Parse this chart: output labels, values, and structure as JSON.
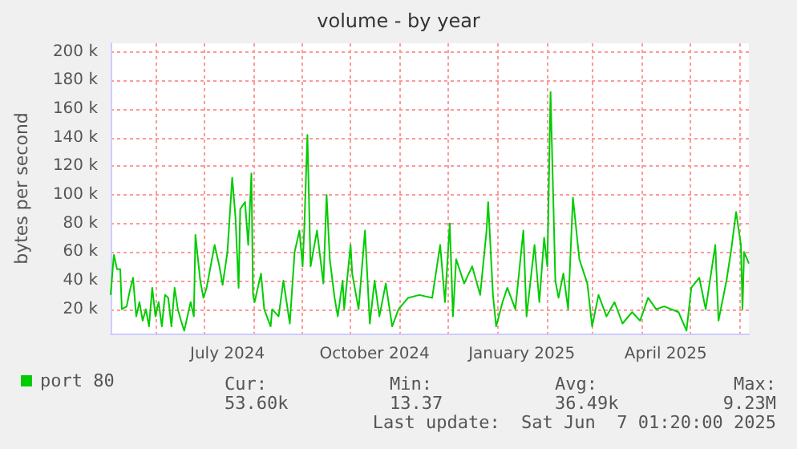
{
  "chart_data": {
    "type": "line",
    "title": "volume - by year",
    "ylabel": "bytes per second",
    "x": [
      "2024-05-04",
      "2024-05-06",
      "2024-05-08",
      "2024-05-10",
      "2024-05-11",
      "2024-05-14",
      "2024-05-16",
      "2024-05-18",
      "2024-05-20",
      "2024-05-22",
      "2024-05-24",
      "2024-05-26",
      "2024-05-28",
      "2024-05-30",
      "2024-06-01",
      "2024-06-03",
      "2024-06-05",
      "2024-06-07",
      "2024-06-09",
      "2024-06-11",
      "2024-06-13",
      "2024-06-15",
      "2024-06-17",
      "2024-06-19",
      "2024-06-21",
      "2024-06-23",
      "2024-06-25",
      "2024-06-26",
      "2024-06-29",
      "2024-07-01",
      "2024-07-03",
      "2024-07-08",
      "2024-07-11",
      "2024-07-13",
      "2024-07-16",
      "2024-07-19",
      "2024-07-21",
      "2024-07-23",
      "2024-07-24",
      "2024-07-27",
      "2024-07-29",
      "2024-07-31",
      "2024-08-01",
      "2024-08-02",
      "2024-08-06",
      "2024-08-08",
      "2024-08-12",
      "2024-08-13",
      "2024-08-17",
      "2024-08-20",
      "2024-08-24",
      "2024-08-27",
      "2024-08-30",
      "2024-09-01",
      "2024-09-02",
      "2024-09-04",
      "2024-09-06",
      "2024-09-10",
      "2024-09-14",
      "2024-09-16",
      "2024-09-18",
      "2024-09-21",
      "2024-09-23",
      "2024-09-26",
      "2024-09-27",
      "2024-10-01",
      "2024-10-02",
      "2024-10-06",
      "2024-10-10",
      "2024-10-13",
      "2024-10-16",
      "2024-10-19",
      "2024-10-23",
      "2024-10-27",
      "2024-10-31",
      "2024-11-06",
      "2024-11-13",
      "2024-11-21",
      "2024-11-26",
      "2024-11-29",
      "2024-12-02",
      "2024-12-04",
      "2024-12-06",
      "2024-12-11",
      "2024-12-16",
      "2024-12-21",
      "2024-12-25",
      "2024-12-26",
      "2024-12-29",
      "2024-12-31",
      "2025-01-04",
      "2025-01-07",
      "2025-01-12",
      "2025-01-17",
      "2025-01-19",
      "2025-01-24",
      "2025-01-27",
      "2025-01-30",
      "2025-02-01",
      "2025-02-03",
      "2025-02-06",
      "2025-02-08",
      "2025-02-11",
      "2025-02-14",
      "2025-02-17",
      "2025-02-21",
      "2025-02-26",
      "2025-03-01",
      "2025-03-05",
      "2025-03-10",
      "2025-03-15",
      "2025-03-20",
      "2025-03-26",
      "2025-03-31",
      "2025-04-05",
      "2025-04-10",
      "2025-04-15",
      "2025-04-24",
      "2025-04-29",
      "2025-05-02",
      "2025-05-07",
      "2025-05-11",
      "2025-05-17",
      "2025-05-19",
      "2025-05-24",
      "2025-05-27",
      "2025-05-30",
      "2025-06-02",
      "2025-06-03",
      "2025-06-04",
      "2025-06-07"
    ],
    "series": [
      {
        "name": "port 80",
        "color": "#00cc00",
        "values": [
          30000,
          58000,
          48000,
          48000,
          20000,
          22000,
          33000,
          42000,
          15000,
          25000,
          12000,
          20000,
          8000,
          35000,
          15000,
          25000,
          8000,
          30000,
          28000,
          8000,
          35000,
          20000,
          12000,
          5000,
          15000,
          25000,
          15000,
          72000,
          40000,
          28000,
          35000,
          65000,
          50000,
          37000,
          60000,
          112000,
          85000,
          35000,
          90000,
          95000,
          65000,
          115000,
          30000,
          25000,
          45000,
          20000,
          8000,
          20000,
          15000,
          40000,
          10000,
          60000,
          75000,
          50000,
          75000,
          142000,
          50000,
          75000,
          38000,
          100000,
          55000,
          28000,
          15000,
          40000,
          20000,
          65000,
          45000,
          20000,
          75000,
          10000,
          40000,
          15000,
          38000,
          8000,
          20000,
          28000,
          30000,
          28000,
          65000,
          25000,
          80000,
          15000,
          55000,
          38000,
          50000,
          30000,
          75000,
          95000,
          30000,
          8000,
          25000,
          35000,
          20000,
          75000,
          15000,
          65000,
          25000,
          70000,
          50000,
          172000,
          40000,
          28000,
          45000,
          20000,
          98000,
          55000,
          38000,
          8000,
          30000,
          15000,
          25000,
          10000,
          18000,
          12000,
          28000,
          20000,
          22000,
          18000,
          5000,
          35000,
          42000,
          20000,
          65000,
          12000,
          40000,
          62000,
          88000,
          65000,
          20000,
          60000,
          52000
        ]
      }
    ],
    "xlim": [
      "2024-05-04",
      "2025-06-07"
    ],
    "xticks": [
      {
        "value": "2024-06-01",
        "label": null
      },
      {
        "value": "2024-07-01",
        "label": null
      },
      {
        "value": "2024-07-16",
        "label": "July 2024"
      },
      {
        "value": "2024-08-01",
        "label": null
      },
      {
        "value": "2024-09-01",
        "label": null
      },
      {
        "value": "2024-10-01",
        "label": null
      },
      {
        "value": "2024-10-16",
        "label": "October 2024"
      },
      {
        "value": "2024-11-01",
        "label": null
      },
      {
        "value": "2024-12-01",
        "label": null
      },
      {
        "value": "2025-01-01",
        "label": null
      },
      {
        "value": "2025-01-16",
        "label": "January 2025"
      },
      {
        "value": "2025-02-01",
        "label": null
      },
      {
        "value": "2025-03-01",
        "label": null
      },
      {
        "value": "2025-04-01",
        "label": null
      },
      {
        "value": "2025-04-16",
        "label": "April 2025"
      },
      {
        "value": "2025-05-01",
        "label": null
      },
      {
        "value": "2025-06-01",
        "label": null
      }
    ],
    "ylim": [
      3000,
      206000
    ],
    "yticks": [
      {
        "value": 20000,
        "label": "20 k"
      },
      {
        "value": 40000,
        "label": "40 k"
      },
      {
        "value": 60000,
        "label": "60 k"
      },
      {
        "value": 80000,
        "label": "80 k"
      },
      {
        "value": 100000,
        "label": "100 k"
      },
      {
        "value": 120000,
        "label": "120 k"
      },
      {
        "value": 140000,
        "label": "140 k"
      },
      {
        "value": 160000,
        "label": "160 k"
      },
      {
        "value": 180000,
        "label": "180 k"
      },
      {
        "value": 200000,
        "label": "200 k"
      }
    ],
    "grid": true,
    "legend": "bottom left",
    "marker": "none",
    "line_style": "solid",
    "annotations": [
      "Cur:",
      "Min:",
      "Avg:",
      "Max:",
      "53.60k",
      "13.37",
      "36.49k",
      "9.23M",
      "Last update:  Sat Jun  7 01:20:00 2025"
    ]
  }
}
